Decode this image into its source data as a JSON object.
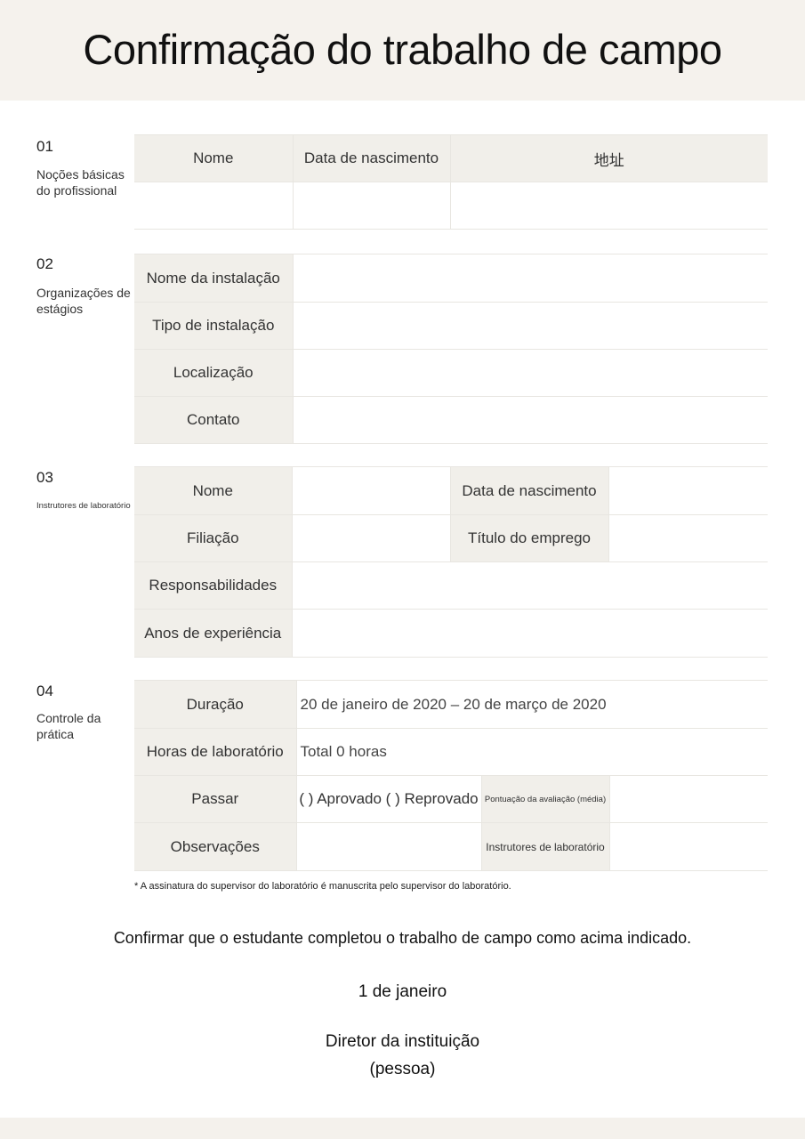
{
  "title": "Confirmação do trabalho de campo",
  "sections": {
    "s1": {
      "number": "01",
      "label": "Noções básicas do profissional",
      "col_name": "Nome",
      "col_birth": "Data de nascimento",
      "col_address": "地址"
    },
    "s2": {
      "number": "02",
      "label": "Organizações de estágios",
      "rows": [
        "Nome da instalação",
        "Tipo de instalação",
        "Localização",
        "Contato"
      ]
    },
    "s3": {
      "number": "03",
      "label": "Instrutores de laboratório",
      "name": "Nome",
      "birth": "Data de nascimento",
      "affiliation": "Filiação",
      "job_title": "Título do emprego",
      "responsibilities": "Responsabilidades",
      "experience": "Anos de experiência"
    },
    "s4": {
      "number": "04",
      "label": "Controle da prática",
      "duration_label": "Duração",
      "duration_value": "20 de janeiro de 2020 – 20 de março de 2020",
      "hours_label": "Horas de laboratório",
      "hours_value": "Total 0 horas",
      "pass_label": "Passar",
      "pass_value": "( ) Aprovado ( ) Reprovado",
      "score_label": "Pontuação da avaliação (média)",
      "notes_label": "Observações",
      "instructor_label": "Instrutores de laboratório"
    }
  },
  "note": "* A assinatura do supervisor do laboratório é manuscrita pelo supervisor do laboratório.",
  "confirmation": "Confirmar que o estudante completou o trabalho de campo como acima indicado.",
  "date": "1 de janeiro",
  "signature_title": "Diretor da instituição",
  "signature_subtitle": "(pessoa)"
}
